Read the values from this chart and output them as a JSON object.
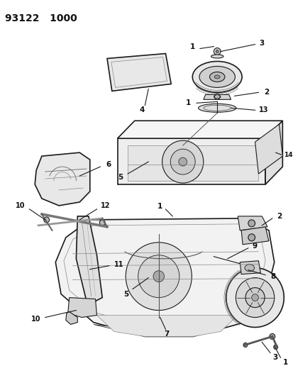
{
  "title": "93122   1000",
  "bg_color": "#ffffff",
  "fig_width": 4.14,
  "fig_height": 5.33,
  "dpi": 100,
  "line_color": "#1a1a1a",
  "text_color": "#111111",
  "label_fontsize": 7.5,
  "title_fontsize": 10
}
